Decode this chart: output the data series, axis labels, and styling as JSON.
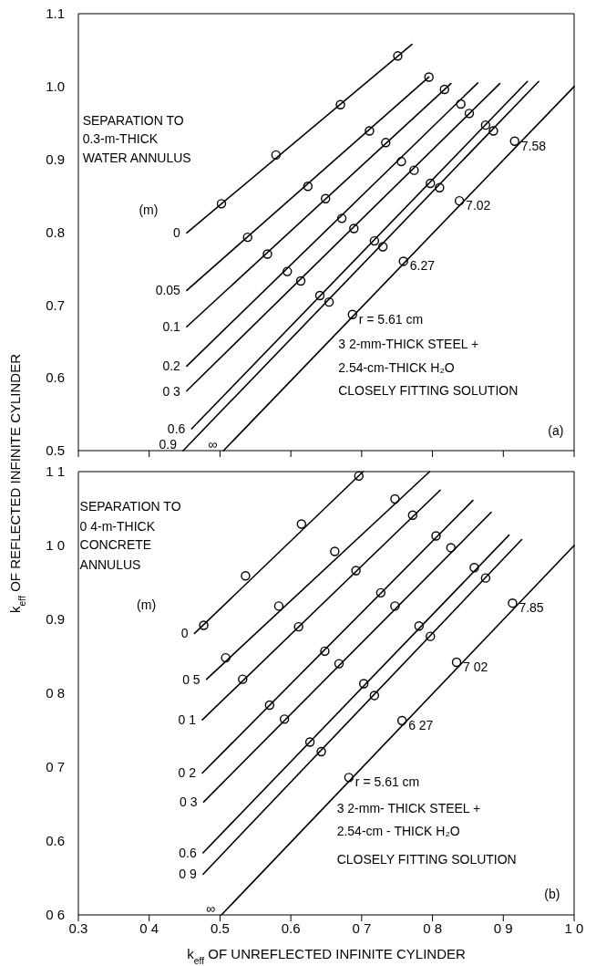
{
  "chart_data": [
    {
      "type": "line",
      "ylabel": "k$_{eff}$ OF REFLECTED INFINITE CYLINDER",
      "xlim": [
        0.3,
        1.0
      ],
      "xticks": [
        0.3,
        0.4,
        0.5,
        0.6,
        0.7,
        0.8,
        0.9,
        1.0
      ],
      "ylim": [
        0.5,
        1.1
      ],
      "yticks": [
        0.5,
        0.6,
        0.7,
        0.8,
        0.9,
        {
          "value": 1.0,
          "label": "1.0"
        },
        1.1
      ],
      "tick_labels": "y",
      "series": [
        {
          "name": "0",
          "color": "#000000",
          "x": [
            0.453,
            0.771
          ],
          "values": [
            0.799,
            1.058
          ]
        },
        {
          "name": "0.05",
          "color": "#000000",
          "x": [
            0.453,
            0.795
          ],
          "values": [
            0.72,
            1.013
          ]
        },
        {
          "name": "0.1",
          "color": "#000000",
          "x": [
            0.453,
            0.826
          ],
          "values": [
            0.67,
            1.004
          ]
        },
        {
          "name": "0.2",
          "color": "#000000",
          "x": [
            0.453,
            0.864
          ],
          "values": [
            0.616,
            1.005
          ]
        },
        {
          "name": "0 3",
          "color": "#000000",
          "x": [
            0.453,
            0.895
          ],
          "values": [
            0.582,
            1.004
          ]
        },
        {
          "name": "0.6",
          "color": "#000000",
          "x": [
            0.46,
            0.934
          ],
          "values": [
            0.53,
            1.007
          ]
        },
        {
          "name": "0.9",
          "color": "#000000",
          "x": [
            0.448,
            0.95
          ],
          "values": [
            0.5,
            1.007
          ]
        },
        {
          "name": "∞",
          "color": "#000000",
          "x": [
            0.505,
            1.0
          ],
          "values": [
            0.5,
            1.0
          ]
        },
        {
          "type": "scatter",
          "color": "#000000",
          "marker": "circle",
          "x": [
            0.502,
            0.579,
            0.67,
            0.751,
            0.539,
            0.624,
            0.711,
            0.795,
            0.567,
            0.649,
            0.734,
            0.817,
            0.595,
            0.672,
            0.756,
            0.84,
            0.614,
            0.689,
            0.774,
            0.852,
            0.641,
            0.718,
            0.797,
            0.875,
            0.654,
            0.73,
            0.81,
            0.886,
            0.687,
            0.759,
            0.838,
            0.916
          ],
          "values": [
            0.839,
            0.906,
            0.975,
            1.042,
            0.793,
            0.863,
            0.939,
            1.013,
            0.77,
            0.846,
            0.923,
            0.996,
            0.746,
            0.819,
            0.897,
            0.976,
            0.733,
            0.805,
            0.885,
            0.963,
            0.713,
            0.788,
            0.867,
            0.947,
            0.704,
            0.78,
            0.861,
            0.939,
            0.687,
            0.76,
            0.843,
            0.925
          ]
        }
      ],
      "annotations": [
        "SEPARATION TO",
        "0.3-m-THICK",
        "WATER ANNULUS",
        "(m)",
        {
          "text": "r = 5.61 cm",
          "x": 0.687,
          "y": 0.687
        },
        {
          "text": "6.27",
          "x": 0.759,
          "y": 0.76
        },
        {
          "text": "7.02",
          "x": 0.838,
          "y": 0.843
        },
        {
          "text": "7.58",
          "x": 0.916,
          "y": 0.925
        },
        "3 2-mm-THICK STEEL +",
        "2.54-cm-THICK H₂O",
        "CLOSELY FITTING SOLUTION",
        "(a)"
      ]
    },
    {
      "type": "line",
      "xlabel": "k$_{eff}$ OF UNREFLECTED INFINITE CYLINDER",
      "xlim": [
        0.3,
        1.0
      ],
      "xticks": [
        0.3,
        {
          "value": 0.4,
          "label": "0 4"
        },
        0.5,
        0.6,
        {
          "value": 0.7,
          "label": "0 7"
        },
        {
          "value": 0.8,
          "label": "0 8"
        },
        {
          "value": 0.9,
          "label": "0 9"
        },
        {
          "value": 1.0,
          "label": "1 0"
        }
      ],
      "ylim": [
        0.5,
        1.1
      ],
      "yticks": [
        {
          "value": 0.5,
          "label": "0 6"
        },
        0.6,
        {
          "value": 0.7,
          "label": "0 7"
        },
        {
          "value": 0.8,
          "label": "0 8"
        },
        0.9,
        {
          "value": 1.0,
          "label": "1 0"
        },
        {
          "value": 1.1,
          "label": "1 1"
        }
      ],
      "series": [
        {
          "name": "0",
          "color": "#000000",
          "x": [
            0.464,
            0.702
          ],
          "values": [
            0.881,
            1.1
          ]
        },
        {
          "name": "0 5",
          "color": "#000000",
          "x": [
            0.481,
            0.796
          ],
          "values": [
            0.819,
            1.1
          ]
        },
        {
          "name": "0 1",
          "color": "#000000",
          "x": [
            0.475,
            0.811
          ],
          "values": [
            0.764,
            1.075
          ]
        },
        {
          "name": "0 2",
          "color": "#000000",
          "x": [
            0.475,
            0.857
          ],
          "values": [
            0.692,
            1.061
          ]
        },
        {
          "name": "0 3",
          "color": "#000000",
          "x": [
            0.477,
            0.883
          ],
          "values": [
            0.653,
            1.045
          ]
        },
        {
          "name": "0.6",
          "color": "#000000",
          "x": [
            0.476,
            0.908
          ],
          "values": [
            0.584,
            1.014
          ]
        },
        {
          "name": "0 9",
          "color": "#000000",
          "x": [
            0.476,
            0.926
          ],
          "values": [
            0.555,
            1.008
          ]
        },
        {
          "name": "∞",
          "color": "#000000",
          "x": [
            0.502,
            1.0
          ],
          "values": [
            0.5,
            1.0
          ]
        },
        {
          "type": "scatter",
          "color": "#000000",
          "marker": "circle",
          "x": [
            0.477,
            0.536,
            0.615,
            0.696,
            0.508,
            0.583,
            0.662,
            0.747,
            0.532,
            0.611,
            0.692,
            0.772,
            0.57,
            0.648,
            0.727,
            0.805,
            0.591,
            0.668,
            0.747,
            0.826,
            0.627,
            0.703,
            0.781,
            0.859,
            0.643,
            0.718,
            0.797,
            0.875,
            0.682,
            0.757,
            0.834,
            0.913
          ],
          "values": [
            0.892,
            0.959,
            1.029,
            1.094,
            0.848,
            0.918,
            0.992,
            1.063,
            0.819,
            0.89,
            0.966,
            1.041,
            0.784,
            0.857,
            0.936,
            1.013,
            0.765,
            0.84,
            0.918,
            0.997,
            0.734,
            0.813,
            0.891,
            0.97,
            0.721,
            0.797,
            0.877,
            0.956,
            0.686,
            0.763,
            0.842,
            0.922
          ]
        }
      ],
      "annotations": [
        "SEPARATION TO",
        "0 4-m-THICK",
        "CONCRETE",
        "ANNULUS",
        "(m)",
        {
          "text": "r = 5.61 cm",
          "x": 0.682,
          "y": 0.686
        },
        {
          "text": "6 27",
          "x": 0.757,
          "y": 0.763
        },
        {
          "text": "7 02",
          "x": 0.834,
          "y": 0.842
        },
        {
          "text": "7.85",
          "x": 0.913,
          "y": 0.922
        },
        "3 2-mm- THICK STEEL +",
        "2.54-cm - THICK H₂O",
        "CLOSELY FITTING SOLUTION",
        "(b)"
      ]
    }
  ]
}
